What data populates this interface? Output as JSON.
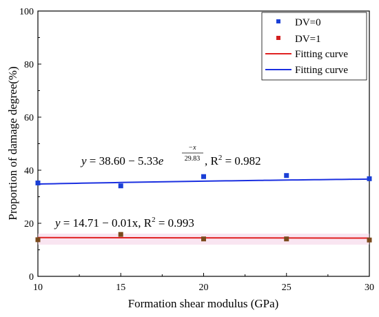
{
  "chart_data": {
    "type": "scatter",
    "xlabel": "Formation shear modulus (GPa)",
    "ylabel": "Proportion of damage degree(%)",
    "xlim": [
      10,
      30
    ],
    "ylim": [
      0,
      100
    ],
    "xticks": [
      10,
      15,
      20,
      25,
      30
    ],
    "yticks": [
      0,
      20,
      40,
      60,
      80,
      100
    ],
    "grid": false,
    "legend_position": "top-right",
    "series": [
      {
        "name": "DV=0",
        "kind": "points",
        "color": "#1a3fd6",
        "marker": "square",
        "x": [
          10,
          15,
          20,
          25,
          30
        ],
        "y": [
          35.2,
          34.1,
          37.6,
          38.0,
          36.8
        ]
      },
      {
        "name": "DV=1",
        "kind": "points",
        "color": "#d21f1f",
        "marker": "square",
        "x": [
          10,
          15,
          20,
          25,
          30
        ],
        "y": [
          13.8,
          15.8,
          14.1,
          14.1,
          13.7
        ]
      },
      {
        "name": "Fitting curve",
        "kind": "line",
        "color": "#e02020",
        "fit": "linear",
        "intercept": 14.71,
        "slope": -0.01
      },
      {
        "name": "Fitting curve",
        "kind": "line",
        "color": "#1a2fe0",
        "fit": "exponential",
        "a": 38.6,
        "b": 5.33,
        "t": 29.83
      }
    ],
    "annotations": {
      "blue_equation": {
        "lhs": "y",
        "eq": " = 38.60 − 5.33",
        "base": "e",
        "exp_num": "−x",
        "exp_den": "29.83",
        "r2_label": ", R",
        "r2_power": "2",
        "r2_value": " = 0.982"
      },
      "red_equation": {
        "lhs": "y",
        "eq": " = 14.71 − 0.01x",
        "r2_label": ", R",
        "r2_power": "2",
        "r2_value": " = 0.993"
      }
    }
  }
}
